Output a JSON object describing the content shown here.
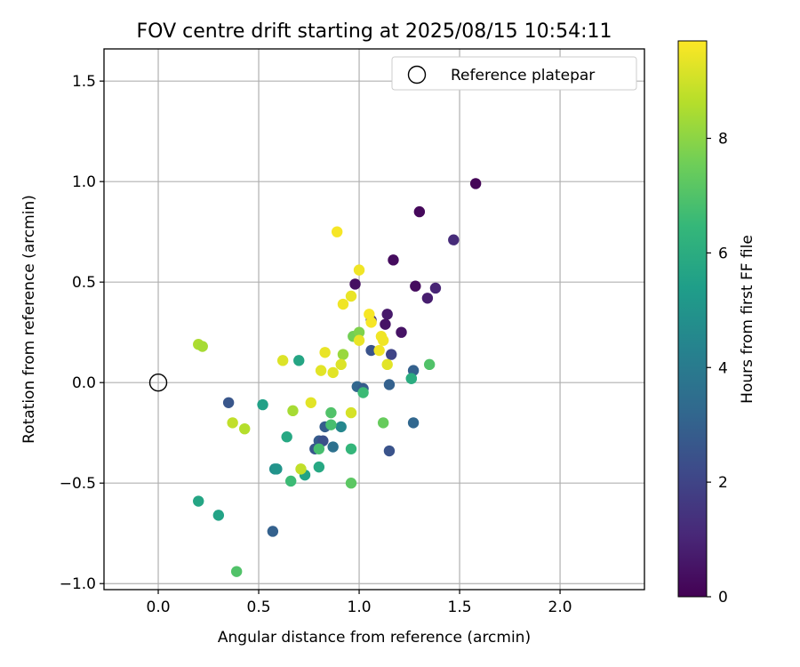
{
  "chart_data": {
    "type": "scatter",
    "title": "FOV centre drift starting at 2025/08/15 10:54:11",
    "xlabel": "Angular distance from reference (arcmin)",
    "ylabel": "Rotation from reference (arcmin)",
    "xlim": [
      -0.27,
      2.42
    ],
    "ylim": [
      -1.03,
      1.66
    ],
    "xticks": [
      0.0,
      0.5,
      1.0,
      1.5,
      2.0
    ],
    "xtick_labels": [
      "0.0",
      "0.5",
      "1.0",
      "1.5",
      "2.0"
    ],
    "yticks": [
      -1.0,
      -0.5,
      0.0,
      0.5,
      1.0,
      1.5
    ],
    "ytick_labels": [
      "−1.0",
      "−0.5",
      "0.0",
      "0.5",
      "1.0",
      "1.5"
    ],
    "grid": true,
    "legend": {
      "position": "top-right",
      "entries": [
        "Reference platepar"
      ]
    },
    "reference_point": {
      "x": 0.0,
      "y": 0.0,
      "label": "Reference platepar"
    },
    "colorbar": {
      "label": "Hours from first FF file",
      "range": [
        0,
        9.7
      ],
      "ticks": [
        0,
        2,
        4,
        6,
        8
      ],
      "tick_labels": [
        "0",
        "2",
        "4",
        "6",
        "8"
      ],
      "colormap": "viridis"
    },
    "points": [
      {
        "x": 1.58,
        "y": 0.99,
        "h": 0.1
      },
      {
        "x": 1.3,
        "y": 0.85,
        "h": 0.2
      },
      {
        "x": 1.47,
        "y": 0.71,
        "h": 1.2
      },
      {
        "x": 1.17,
        "y": 0.61,
        "h": 0.3
      },
      {
        "x": 0.98,
        "y": 0.49,
        "h": 0.4
      },
      {
        "x": 1.28,
        "y": 0.48,
        "h": 0.3
      },
      {
        "x": 1.38,
        "y": 0.47,
        "h": 1.0
      },
      {
        "x": 1.34,
        "y": 0.42,
        "h": 0.8
      },
      {
        "x": 1.14,
        "y": 0.34,
        "h": 0.7
      },
      {
        "x": 1.13,
        "y": 0.29,
        "h": 0.5
      },
      {
        "x": 1.06,
        "y": 0.31,
        "h": 1.5
      },
      {
        "x": 1.21,
        "y": 0.25,
        "h": 0.5
      },
      {
        "x": 1.06,
        "y": 0.16,
        "h": 2.5
      },
      {
        "x": 1.16,
        "y": 0.14,
        "h": 2.0
      },
      {
        "x": 1.27,
        "y": 0.06,
        "h": 3.0
      },
      {
        "x": 0.99,
        "y": -0.02,
        "h": 3.2
      },
      {
        "x": 1.02,
        "y": -0.03,
        "h": 2.8
      },
      {
        "x": 1.15,
        "y": -0.01,
        "h": 3.0
      },
      {
        "x": 1.27,
        "y": -0.2,
        "h": 3.2
      },
      {
        "x": 1.15,
        "y": -0.34,
        "h": 2.5
      },
      {
        "x": 0.35,
        "y": -0.1,
        "h": 2.6
      },
      {
        "x": 0.57,
        "y": -0.74,
        "h": 3.0
      },
      {
        "x": 0.78,
        "y": -0.33,
        "h": 2.6
      },
      {
        "x": 0.8,
        "y": -0.29,
        "h": 2.8
      },
      {
        "x": 0.82,
        "y": -0.29,
        "h": 2.4
      },
      {
        "x": 0.83,
        "y": -0.22,
        "h": 2.9
      },
      {
        "x": 0.87,
        "y": -0.32,
        "h": 3.6
      },
      {
        "x": 0.91,
        "y": -0.22,
        "h": 4.5
      },
      {
        "x": 0.52,
        "y": -0.11,
        "h": 5.5
      },
      {
        "x": 0.58,
        "y": -0.43,
        "h": 4.8
      },
      {
        "x": 0.59,
        "y": -0.43,
        "h": 5.0
      },
      {
        "x": 0.64,
        "y": -0.27,
        "h": 5.8
      },
      {
        "x": 0.66,
        "y": -0.49,
        "h": 6.6
      },
      {
        "x": 0.7,
        "y": 0.11,
        "h": 5.7
      },
      {
        "x": 0.73,
        "y": -0.46,
        "h": 5.6
      },
      {
        "x": 0.8,
        "y": -0.42,
        "h": 5.8
      },
      {
        "x": 0.8,
        "y": -0.33,
        "h": 6.8
      },
      {
        "x": 0.86,
        "y": -0.21,
        "h": 6.8
      },
      {
        "x": 0.86,
        "y": -0.15,
        "h": 7.0
      },
      {
        "x": 0.96,
        "y": -0.33,
        "h": 6.4
      },
      {
        "x": 0.96,
        "y": -0.5,
        "h": 7.2
      },
      {
        "x": 0.2,
        "y": -0.59,
        "h": 5.7
      },
      {
        "x": 0.3,
        "y": -0.66,
        "h": 5.6
      },
      {
        "x": 0.39,
        "y": -0.94,
        "h": 7.0
      },
      {
        "x": 1.02,
        "y": -0.05,
        "h": 6.6
      },
      {
        "x": 1.12,
        "y": -0.2,
        "h": 7.4
      },
      {
        "x": 1.26,
        "y": 0.02,
        "h": 5.8
      },
      {
        "x": 1.26,
        "y": 0.02,
        "h": 6.0
      },
      {
        "x": 1.35,
        "y": 0.09,
        "h": 7.0
      },
      {
        "x": 0.97,
        "y": 0.23,
        "h": 7.6
      },
      {
        "x": 1.0,
        "y": 0.25,
        "h": 7.8
      },
      {
        "x": 0.92,
        "y": 0.14,
        "h": 8.2
      },
      {
        "x": 0.2,
        "y": 0.19,
        "h": 8.5
      },
      {
        "x": 0.22,
        "y": 0.18,
        "h": 8.4
      },
      {
        "x": 0.37,
        "y": -0.2,
        "h": 8.8
      },
      {
        "x": 0.43,
        "y": -0.23,
        "h": 8.6
      },
      {
        "x": 0.62,
        "y": 0.11,
        "h": 9.2
      },
      {
        "x": 0.67,
        "y": -0.14,
        "h": 8.4
      },
      {
        "x": 0.71,
        "y": -0.43,
        "h": 8.8
      },
      {
        "x": 0.76,
        "y": -0.1,
        "h": 9.3
      },
      {
        "x": 0.81,
        "y": 0.06,
        "h": 9.3
      },
      {
        "x": 0.83,
        "y": 0.15,
        "h": 9.4
      },
      {
        "x": 0.87,
        "y": 0.05,
        "h": 9.3
      },
      {
        "x": 0.91,
        "y": 0.09,
        "h": 9.2
      },
      {
        "x": 0.89,
        "y": 0.75,
        "h": 9.6
      },
      {
        "x": 0.92,
        "y": 0.39,
        "h": 9.5
      },
      {
        "x": 0.96,
        "y": 0.43,
        "h": 9.4
      },
      {
        "x": 0.96,
        "y": -0.15,
        "h": 9.1
      },
      {
        "x": 1.0,
        "y": 0.56,
        "h": 9.5
      },
      {
        "x": 1.0,
        "y": 0.21,
        "h": 9.4
      },
      {
        "x": 1.05,
        "y": 0.34,
        "h": 9.6
      },
      {
        "x": 1.06,
        "y": 0.3,
        "h": 9.6
      },
      {
        "x": 1.1,
        "y": 0.16,
        "h": 9.5
      },
      {
        "x": 1.11,
        "y": 0.23,
        "h": 9.5
      },
      {
        "x": 1.12,
        "y": 0.21,
        "h": 9.5
      },
      {
        "x": 1.14,
        "y": 0.09,
        "h": 9.3
      }
    ]
  }
}
